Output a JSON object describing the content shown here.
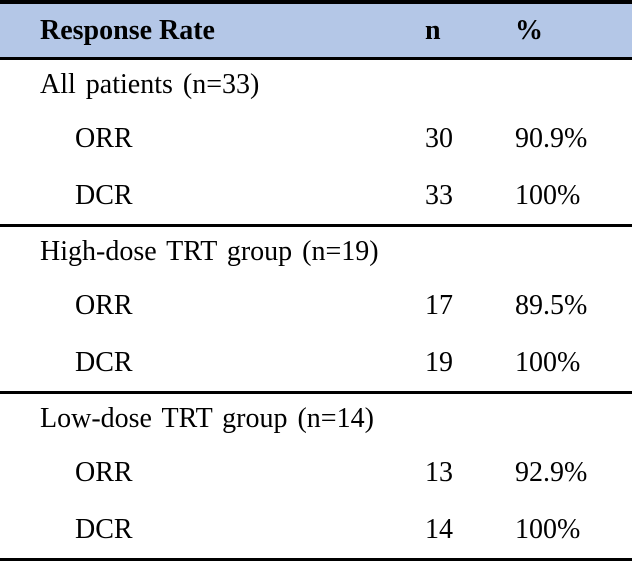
{
  "colors": {
    "header_bg": "#b4c7e7",
    "border": "#000000"
  },
  "table": {
    "header": {
      "response_rate": "Response Rate",
      "n": "n",
      "percent": "%"
    },
    "sections": [
      {
        "title": "All patients (n=33)",
        "rows": [
          {
            "label": "ORR",
            "n": "30",
            "pct": "90.9%"
          },
          {
            "label": "DCR",
            "n": "33",
            "pct": "100%"
          }
        ]
      },
      {
        "title": "High-dose TRT group (n=19)",
        "rows": [
          {
            "label": "ORR",
            "n": "17",
            "pct": "89.5%"
          },
          {
            "label": "DCR",
            "n": "19",
            "pct": "100%"
          }
        ]
      },
      {
        "title": "Low-dose TRT group (n=14)",
        "rows": [
          {
            "label": "ORR",
            "n": "13",
            "pct": "92.9%"
          },
          {
            "label": "DCR",
            "n": "14",
            "pct": "100%"
          }
        ]
      }
    ]
  },
  "chart_data": {
    "type": "table",
    "columns": [
      "Response Rate",
      "n",
      "%"
    ],
    "rows": [
      [
        "All patients (n=33)",
        "",
        ""
      ],
      [
        "ORR",
        "30",
        "90.9%"
      ],
      [
        "DCR",
        "33",
        "100%"
      ],
      [
        "High-dose TRT group (n=19)",
        "",
        ""
      ],
      [
        "ORR",
        "17",
        "89.5%"
      ],
      [
        "DCR",
        "19",
        "100%"
      ],
      [
        "Low-dose TRT group (n=14)",
        "",
        ""
      ],
      [
        "ORR",
        "13",
        "92.9%"
      ],
      [
        "DCR",
        "14",
        "100%"
      ]
    ]
  }
}
